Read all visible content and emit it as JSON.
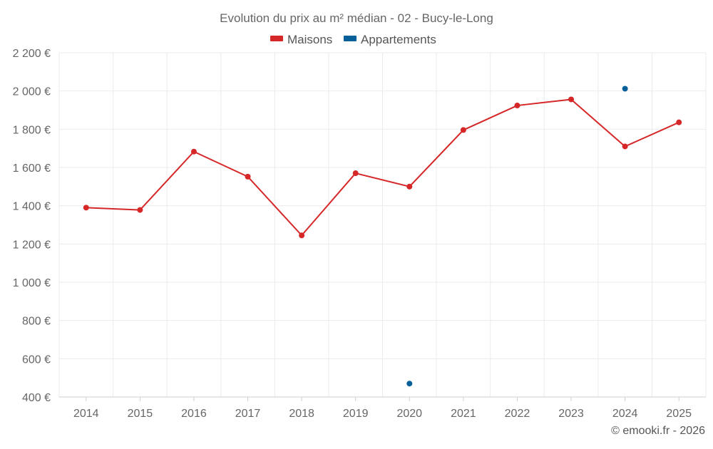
{
  "chart_data": {
    "type": "line",
    "title": "Evolution du prix au m² médian - 02 - Bucy-le-Long",
    "xlabel": "",
    "ylabel": "",
    "categories": [
      "2014",
      "2015",
      "2016",
      "2017",
      "2018",
      "2019",
      "2020",
      "2021",
      "2022",
      "2023",
      "2024",
      "2025"
    ],
    "ylim": [
      400,
      2200
    ],
    "yticks": [
      400,
      600,
      800,
      1000,
      1200,
      1400,
      1600,
      1800,
      2000,
      2200
    ],
    "ytick_labels": [
      "400 €",
      "600 €",
      "800 €",
      "1 000 €",
      "1 200 €",
      "1 400 €",
      "1 600 €",
      "1 800 €",
      "2 000 €",
      "2 200 €"
    ],
    "grid": true,
    "legend_position": "top-center",
    "series": [
      {
        "name": "Maisons",
        "color": "#d62728",
        "line": true,
        "values": [
          1390,
          1378,
          1683,
          1552,
          1245,
          1570,
          1500,
          1796,
          1924,
          1956,
          1710,
          1836
        ]
      },
      {
        "name": "Appartements",
        "color": "#05609a",
        "line": false,
        "values": [
          null,
          null,
          null,
          null,
          null,
          null,
          470,
          null,
          null,
          null,
          2012,
          null
        ]
      }
    ],
    "footer": "© emooki.fr - 2026"
  }
}
